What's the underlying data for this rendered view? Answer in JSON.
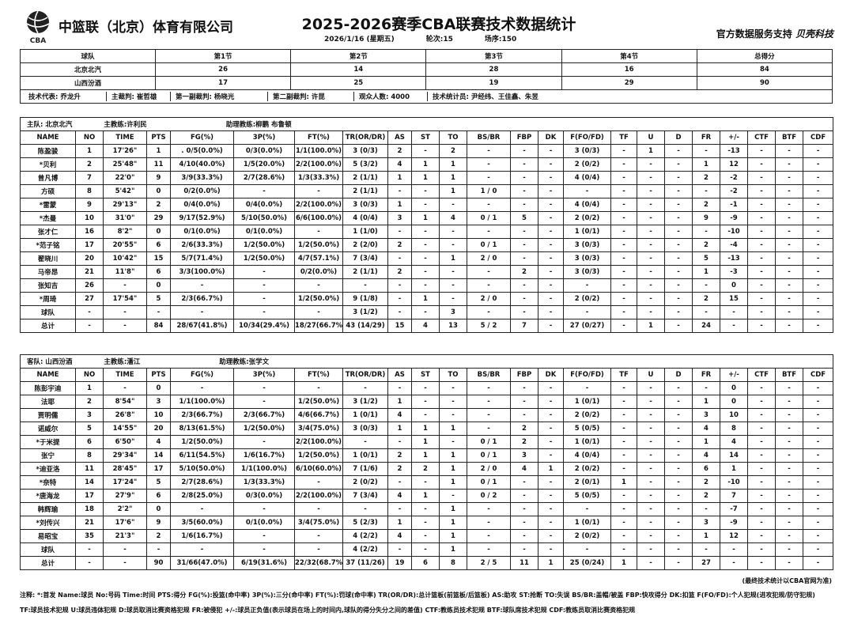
{
  "header": {
    "company": "中篮联（北京）体育有限公司",
    "logo_text": "CBA",
    "title": "2025-2026赛季CBA联赛技术数据统计",
    "date": "2026/1/16 (星期五)",
    "round": "轮次:15",
    "game": "场序:150",
    "sponsor_prefix": "官方数据服务支持",
    "sponsor_brand": "贝壳科技"
  },
  "score": {
    "headers": [
      "球队",
      "第1节",
      "第2节",
      "第3节",
      "第4节",
      "总得分"
    ],
    "rows": [
      [
        "北京北汽",
        "26",
        "14",
        "28",
        "16",
        "84"
      ],
      [
        "山西汾酒",
        "17",
        "25",
        "19",
        "29",
        "90"
      ]
    ],
    "officials": [
      "技术代表: 乔龙升",
      "主裁判: 崔哲雄",
      "第一副裁判: 杨晓光",
      "第二副裁判: 许昆",
      "观众人数: 4000",
      "技术统计员: 尹经纬、王佳鑫、朱昱"
    ]
  },
  "columns": [
    "NAME",
    "NO",
    "TIME",
    "PTS",
    "FG(%)",
    "3P(%)",
    "FT(%)",
    "TR(OR/DR)",
    "AS",
    "ST",
    "TO",
    "BS/BR",
    "FBP",
    "DK",
    "F(FO/FD)",
    "TF",
    "U",
    "D",
    "FR",
    "+/-",
    "CTF",
    "BTF",
    "CDF"
  ],
  "home": {
    "team": "主队: 北京北汽",
    "coach": "主教练:许利民",
    "assistant": "助理教练:柳鹏 布鲁顿",
    "rows": [
      [
        "陈盈骏",
        "1",
        "17'26\"",
        "1",
        ". 0/5(0.0%)",
        "0/3(0.0%)",
        "1/1(100.0%)",
        "3 (0/3)",
        "2",
        "-",
        "2",
        "-",
        "-",
        "-",
        "3 (0/3)",
        "-",
        "1",
        "-",
        "-",
        "-13",
        "-",
        "-",
        "-"
      ],
      [
        "*贝利",
        "2",
        "25'48\"",
        "11",
        "4/10(40.0%)",
        "1/5(20.0%)",
        "2/2(100.0%)",
        "5 (3/2)",
        "4",
        "1",
        "1",
        "-",
        "-",
        "-",
        "2 (0/2)",
        "-",
        "-",
        "-",
        "1",
        "12",
        "-",
        "-",
        "-"
      ],
      [
        "曾凡博",
        "7",
        "22'0\"",
        "9",
        "3/9(33.3%)",
        "2/7(28.6%)",
        "1/3(33.3%)",
        "2 (1/1)",
        "1",
        "1",
        "1",
        "-",
        "-",
        "-",
        "4 (0/4)",
        "-",
        "-",
        "-",
        "2",
        "-2",
        "-",
        "-",
        "-"
      ],
      [
        "方硕",
        "8",
        "5'42\"",
        "0",
        "0/2(0.0%)",
        "-",
        "-",
        "2 (1/1)",
        "-",
        "-",
        "1",
        "1 / 0",
        "-",
        "-",
        "-",
        "-",
        "-",
        "-",
        "-",
        "-2",
        "-",
        "-",
        "-"
      ],
      [
        "*雷蒙",
        "9",
        "29'13\"",
        "2",
        "0/4(0.0%)",
        "0/4(0.0%)",
        "2/2(100.0%)",
        "3 (0/3)",
        "1",
        "-",
        "-",
        "-",
        "-",
        "-",
        "4 (0/4)",
        "-",
        "-",
        "-",
        "2",
        "-1",
        "-",
        "-",
        "-"
      ],
      [
        "*杰曼",
        "10",
        "31'0\"",
        "29",
        "9/17(52.9%)",
        "5/10(50.0%)",
        "6/6(100.0%)",
        "4 (0/4)",
        "3",
        "1",
        "4",
        "0 / 1",
        "5",
        "-",
        "2 (0/2)",
        "-",
        "-",
        "-",
        "9",
        "-9",
        "-",
        "-",
        "-"
      ],
      [
        "张才仁",
        "16",
        "8'2\"",
        "0",
        "0/1(0.0%)",
        "0/1(0.0%)",
        "-",
        "1 (1/0)",
        "-",
        "-",
        "-",
        "-",
        "-",
        "-",
        "1 (0/1)",
        "-",
        "-",
        "-",
        "-",
        "-10",
        "-",
        "-",
        "-"
      ],
      [
        "*范子铭",
        "17",
        "20'55\"",
        "6",
        "2/6(33.3%)",
        "1/2(50.0%)",
        "1/2(50.0%)",
        "2 (2/0)",
        "2",
        "-",
        "-",
        "0 / 1",
        "-",
        "-",
        "3 (0/3)",
        "-",
        "-",
        "-",
        "2",
        "-4",
        "-",
        "-",
        "-"
      ],
      [
        "翟晓川",
        "20",
        "10'42\"",
        "15",
        "5/7(71.4%)",
        "1/2(50.0%)",
        "4/7(57.1%)",
        "7 (3/4)",
        "-",
        "-",
        "1",
        "2 / 0",
        "-",
        "-",
        "3 (0/3)",
        "-",
        "-",
        "-",
        "5",
        "-13",
        "-",
        "-",
        "-"
      ],
      [
        "马帝昂",
        "21",
        "11'8\"",
        "6",
        "3/3(100.0%)",
        "-",
        "0/2(0.0%)",
        "2 (1/1)",
        "2",
        "-",
        "-",
        "-",
        "2",
        "-",
        "3 (0/3)",
        "-",
        "-",
        "-",
        "1",
        "-3",
        "-",
        "-",
        "-"
      ],
      [
        "张知吉",
        "26",
        "-",
        "0",
        "-",
        "-",
        "-",
        "-",
        "-",
        "-",
        "-",
        "-",
        "-",
        "-",
        "-",
        "-",
        "-",
        "-",
        "-",
        "0",
        "-",
        "-",
        "-"
      ],
      [
        "*周琦",
        "27",
        "17'54\"",
        "5",
        "2/3(66.7%)",
        "-",
        "1/2(50.0%)",
        "9 (1/8)",
        "-",
        "1",
        "-",
        "2 / 0",
        "-",
        "-",
        "2 (0/2)",
        "-",
        "-",
        "-",
        "2",
        "15",
        "-",
        "-",
        "-"
      ],
      [
        "球队",
        "-",
        "-",
        "-",
        "-",
        "-",
        "-",
        "3 (1/2)",
        "-",
        "-",
        "3",
        "-",
        "-",
        "-",
        "-",
        "-",
        "-",
        "-",
        "-",
        "-",
        "-",
        "-",
        "-"
      ],
      [
        "总计",
        "-",
        "-",
        "84",
        "28/67(41.8%)",
        "10/34(29.4%)",
        "18/27(66.7%)",
        "43 (14/29)",
        "15",
        "4",
        "13",
        "5 / 2",
        "7",
        "-",
        "27 (0/27)",
        "-",
        "1",
        "-",
        "24",
        "-",
        "-",
        "-",
        "-"
      ]
    ]
  },
  "away": {
    "team": "客队: 山西汾酒",
    "coach": "主教练:潘江",
    "assistant": "助理教练:张学文",
    "rows": [
      [
        "陈彭宇迪",
        "1",
        "-",
        "0",
        "-",
        "-",
        "-",
        "-",
        "-",
        "-",
        "-",
        "-",
        "-",
        "-",
        "-",
        "-",
        "-",
        "-",
        "-",
        "0",
        "-",
        "-",
        "-"
      ],
      [
        "法耶",
        "2",
        "8'54\"",
        "3",
        "1/1(100.0%)",
        "-",
        "1/2(50.0%)",
        "3 (1/2)",
        "1",
        "-",
        "-",
        "-",
        "-",
        "-",
        "1 (0/1)",
        "-",
        "-",
        "-",
        "1",
        "0",
        "-",
        "-",
        "-"
      ],
      [
        "贾明儒",
        "3",
        "26'8\"",
        "10",
        "2/3(66.7%)",
        "2/3(66.7%)",
        "4/6(66.7%)",
        "1 (0/1)",
        "4",
        "-",
        "-",
        "-",
        "-",
        "-",
        "2 (0/2)",
        "-",
        "-",
        "-",
        "3",
        "10",
        "-",
        "-",
        "-"
      ],
      [
        "诺威尔",
        "5",
        "14'55\"",
        "20",
        "8/13(61.5%)",
        "1/2(50.0%)",
        "3/4(75.0%)",
        "3 (0/3)",
        "1",
        "1",
        "1",
        "-",
        "2",
        "-",
        "5 (0/5)",
        "-",
        "-",
        "-",
        "4",
        "8",
        "-",
        "-",
        "-"
      ],
      [
        "*于米提",
        "6",
        "6'50\"",
        "4",
        "1/2(50.0%)",
        "-",
        "2/2(100.0%)",
        "-",
        "-",
        "1",
        "-",
        "0 / 1",
        "2",
        "-",
        "1 (0/1)",
        "-",
        "-",
        "-",
        "1",
        "4",
        "-",
        "-",
        "-"
      ],
      [
        "张宁",
        "8",
        "29'34\"",
        "14",
        "6/11(54.5%)",
        "1/6(16.7%)",
        "1/2(50.0%)",
        "1 (0/1)",
        "2",
        "1",
        "1",
        "0 / 1",
        "3",
        "-",
        "4 (0/4)",
        "-",
        "-",
        "-",
        "4",
        "14",
        "-",
        "-",
        "-"
      ],
      [
        "*迪亚洛",
        "11",
        "28'45\"",
        "17",
        "5/10(50.0%)",
        "1/1(100.0%)",
        "6/10(60.0%)",
        "7 (1/6)",
        "2",
        "2",
        "1",
        "2 / 0",
        "4",
        "1",
        "2 (0/2)",
        "-",
        "-",
        "-",
        "6",
        "1",
        "-",
        "-",
        "-"
      ],
      [
        "*奈特",
        "14",
        "17'24\"",
        "5",
        "2/7(28.6%)",
        "1/3(33.3%)",
        "-",
        "2 (0/2)",
        "-",
        "-",
        "1",
        "0 / 1",
        "-",
        "-",
        "2 (0/1)",
        "1",
        "-",
        "-",
        "2",
        "-10",
        "-",
        "-",
        "-"
      ],
      [
        "*唐海龙",
        "17",
        "27'9\"",
        "6",
        "2/8(25.0%)",
        "0/3(0.0%)",
        "2/2(100.0%)",
        "7 (3/4)",
        "4",
        "1",
        "-",
        "0 / 2",
        "-",
        "-",
        "5 (0/5)",
        "-",
        "-",
        "-",
        "2",
        "7",
        "-",
        "-",
        "-"
      ],
      [
        "韩辉瑜",
        "18",
        "2'2\"",
        "0",
        "-",
        "-",
        "-",
        "-",
        "-",
        "-",
        "1",
        "-",
        "-",
        "-",
        "-",
        "-",
        "-",
        "-",
        "-",
        "-7",
        "-",
        "-",
        "-"
      ],
      [
        "*刘传兴",
        "21",
        "17'6\"",
        "9",
        "3/5(60.0%)",
        "0/1(0.0%)",
        "3/4(75.0%)",
        "5 (2/3)",
        "1",
        "-",
        "1",
        "-",
        "-",
        "-",
        "1 (0/1)",
        "-",
        "-",
        "-",
        "3",
        "-9",
        "-",
        "-",
        "-"
      ],
      [
        "易昭宝",
        "35",
        "21'3\"",
        "2",
        "1/6(16.7%)",
        "-",
        "-",
        "4 (2/2)",
        "4",
        "-",
        "1",
        "-",
        "-",
        "-",
        "2 (0/2)",
        "-",
        "-",
        "-",
        "1",
        "12",
        "-",
        "-",
        "-"
      ],
      [
        "球队",
        "-",
        "-",
        "-",
        "-",
        "-",
        "-",
        "4 (2/2)",
        "-",
        "-",
        "1",
        "-",
        "-",
        "-",
        "-",
        "-",
        "-",
        "-",
        "-",
        "-",
        "-",
        "-",
        "-"
      ],
      [
        "总计",
        "-",
        "-",
        "90",
        "31/66(47.0%)",
        "6/19(31.6%)",
        "22/32(68.7%)",
        "37 (11/26)",
        "19",
        "6",
        "8",
        "2 / 5",
        "11",
        "1",
        "25 (0/24)",
        "1",
        "-",
        "-",
        "27",
        "-",
        "-",
        "-",
        "-"
      ]
    ]
  },
  "footer": {
    "final_note": "(最终技术统计以CBA官网为准)",
    "note_line1": "注释: *:首发 Name:球员 No:号码 Time:时间 PTS:得分 FG(%):投篮(命中率) 3P(%):三分(命中率) FT(%):罚球(命中率) TR(OR/DR):总计篮板(前篮板/后篮板) AS:助攻 ST:抢断 TO:失误 BS/BR:盖帽/被盖 FBP:快攻得分 DK:扣篮 F(FO/FD):个人犯规(进攻犯规/防守犯规)",
    "note_line2": "TF:球员技术犯规 U:球员违体犯规 D:球员取消比赛资格犯规 FR:被侵犯 +/-:球员正负值(表示球员在场上的时间内,球队的得分失分之间的差值) CTF:教练员技术犯规 BTF:球队席技术犯规 CDF:教练员取消比赛资格犯规"
  }
}
